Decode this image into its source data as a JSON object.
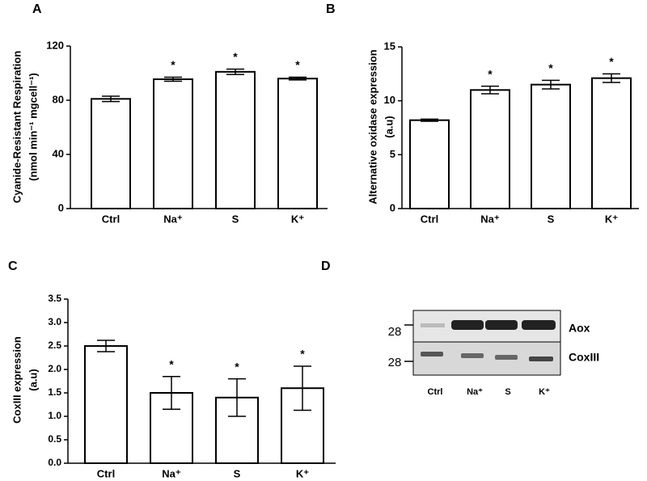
{
  "chart_data": [
    {
      "type": "bar",
      "panel_label": "A",
      "ylabel": [
        "Cyanide-Resistant Respiration",
        "(nmol min⁻¹ mgcell⁻¹)"
      ],
      "categories": [
        "Ctrl",
        "Na⁺",
        "S",
        "K⁺"
      ],
      "values": [
        81,
        95.5,
        101,
        96
      ],
      "errors": [
        2,
        1.5,
        2,
        1
      ],
      "annotations": [
        null,
        "*",
        "*",
        "*"
      ],
      "color": "#ffffff",
      "ylim": [
        0,
        120
      ],
      "yticks": [
        0,
        40,
        80,
        120
      ]
    },
    {
      "type": "bar",
      "panel_label": "B",
      "ylabel": [
        "Alternative oxidase expression",
        "(a.u)"
      ],
      "categories": [
        "Ctrl",
        "Na⁺",
        "S",
        "K⁺"
      ],
      "values": [
        8.2,
        11,
        11.5,
        12.1
      ],
      "errors": [
        0.1,
        0.35,
        0.4,
        0.4
      ],
      "annotations": [
        null,
        "*",
        "*",
        "*"
      ],
      "color": "#ffffff",
      "ylim": [
        0,
        15
      ],
      "yticks": [
        0,
        5,
        10,
        15
      ]
    },
    {
      "type": "bar",
      "panel_label": "C",
      "ylabel": [
        "CoxIII expression",
        "(a.u)"
      ],
      "categories": [
        "Ctrl",
        "Na⁺",
        "S",
        "K⁺"
      ],
      "values": [
        2.5,
        1.5,
        1.4,
        1.6
      ],
      "errors": [
        0.12,
        0.35,
        0.4,
        0.47
      ],
      "annotations": [
        null,
        "*",
        "*",
        "*"
      ],
      "color": "#ffffff",
      "ylim": [
        0,
        3.5
      ],
      "yticks": [
        {
          "value": 0,
          "label": "0.0"
        },
        0.5,
        {
          "value": 1,
          "label": "1.0"
        },
        1.5,
        {
          "value": 2,
          "label": "2.0"
        },
        2.5,
        {
          "value": 3,
          "label": "3.0"
        },
        3.5
      ]
    },
    {
      "type": "blot",
      "panel_label": "D",
      "lanes": [
        "Ctrl",
        "Na⁺",
        "S",
        "K⁺"
      ],
      "bands": [
        "Aox",
        "CoxIII"
      ],
      "marker_labels": [
        28,
        28
      ]
    }
  ]
}
